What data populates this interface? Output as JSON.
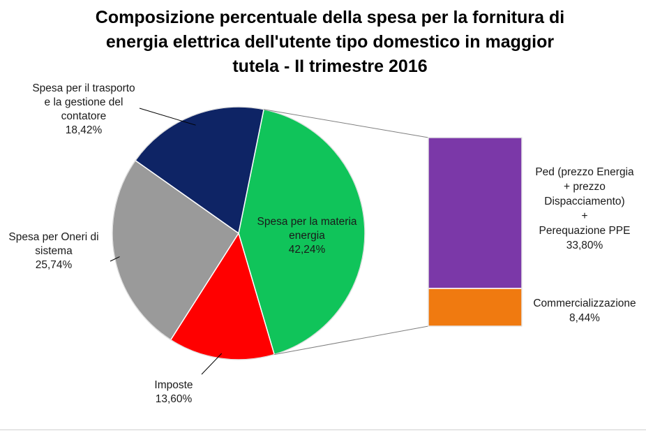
{
  "title_lines": [
    "Composizione percentuale della spesa per la fornitura di",
    "energia elettrica dell'utente tipo domestico in maggior",
    "tutela - II trimestre 2016"
  ],
  "chart_data": [
    {
      "type": "pie",
      "title": "Composizione percentuale della spesa per la fornitura di energia elettrica dell'utente tipo domestico in maggior tutela - II trimestre 2016",
      "slices": [
        {
          "label_lines": [
            "Spesa per la materia",
            "energia"
          ],
          "value_text": "42,24%",
          "value": 42.24,
          "color": "#10c45a"
        },
        {
          "label_lines": [
            "Imposte"
          ],
          "value_text": "13,60%",
          "value": 13.6,
          "color": "#ff0000"
        },
        {
          "label_lines": [
            "Spesa per Oneri di",
            "sistema"
          ],
          "value_text": "25,74%",
          "value": 25.74,
          "color": "#9a9a9a"
        },
        {
          "label_lines": [
            "Spesa per il trasporto",
            "e la gestione del",
            "contatore"
          ],
          "value_text": "18,42%",
          "value": 18.42,
          "color": "#0e2465"
        }
      ]
    },
    {
      "type": "bar",
      "stacked": true,
      "segments": [
        {
          "label_lines": [
            "Ped (prezzo Energia",
            "+ prezzo",
            "Dispacciamento)",
            "+",
            "Perequazione PPE"
          ],
          "value_text": "33,80%",
          "value": 33.8,
          "color": "#7b38a8"
        },
        {
          "label_lines": [
            "Commercializzazione"
          ],
          "value_text": "8,44%",
          "value": 8.44,
          "color": "#f07a10"
        }
      ]
    }
  ]
}
